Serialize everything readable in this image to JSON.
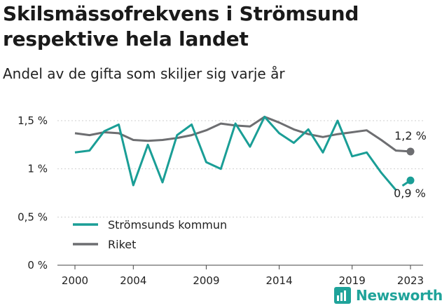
{
  "header": {
    "title": "Skilsmässofrekvens i Strömsund respektive hela landet",
    "subtitle": "Andel av de gifta som skiljer sig varje år"
  },
  "brand": {
    "name": "Newsworthy",
    "icon": "newsworthy-logo-icon",
    "color": "#1fa39a"
  },
  "colors": {
    "stromsund": "#1a9e96",
    "riket": "#6d6e71",
    "grid": "#cfcfcf"
  },
  "chart_data": {
    "type": "line",
    "x": [
      2000,
      2001,
      2002,
      2003,
      2004,
      2005,
      2006,
      2007,
      2008,
      2009,
      2010,
      2011,
      2012,
      2013,
      2014,
      2015,
      2016,
      2017,
      2018,
      2019,
      2020,
      2021,
      2022,
      2023
    ],
    "ylim": [
      0,
      1.5
    ],
    "yticks": [
      0,
      0.5,
      1,
      1.5
    ],
    "ytick_labels": [
      "0 %",
      "0,5 %",
      "1 %",
      "1,5 %"
    ],
    "xticks": [
      2000,
      2004,
      2009,
      2014,
      2019,
      2023
    ],
    "xtick_labels": [
      "2000",
      "2004",
      "2009",
      "2014",
      "2019",
      "2023"
    ],
    "grid": true,
    "legend": "bottom-left",
    "series": [
      {
        "name": "Strömsunds kommun",
        "color": "#1a9e96",
        "values": [
          1.17,
          1.19,
          1.39,
          1.46,
          0.83,
          1.25,
          0.86,
          1.35,
          1.46,
          1.07,
          1.0,
          1.47,
          1.23,
          1.54,
          1.37,
          1.27,
          1.41,
          1.17,
          1.5,
          1.13,
          1.17,
          0.96,
          0.78,
          0.88
        ],
        "gap_before_last": true,
        "end_label": "0,9 %"
      },
      {
        "name": "Riket",
        "color": "#6d6e71",
        "values": [
          1.37,
          1.35,
          1.38,
          1.37,
          1.3,
          1.29,
          1.3,
          1.32,
          1.35,
          1.4,
          1.47,
          1.45,
          1.44,
          1.54,
          1.48,
          1.41,
          1.36,
          1.33,
          1.36,
          1.38,
          1.4,
          1.3,
          1.19,
          1.18
        ],
        "end_label": "1,2 %"
      }
    ]
  }
}
